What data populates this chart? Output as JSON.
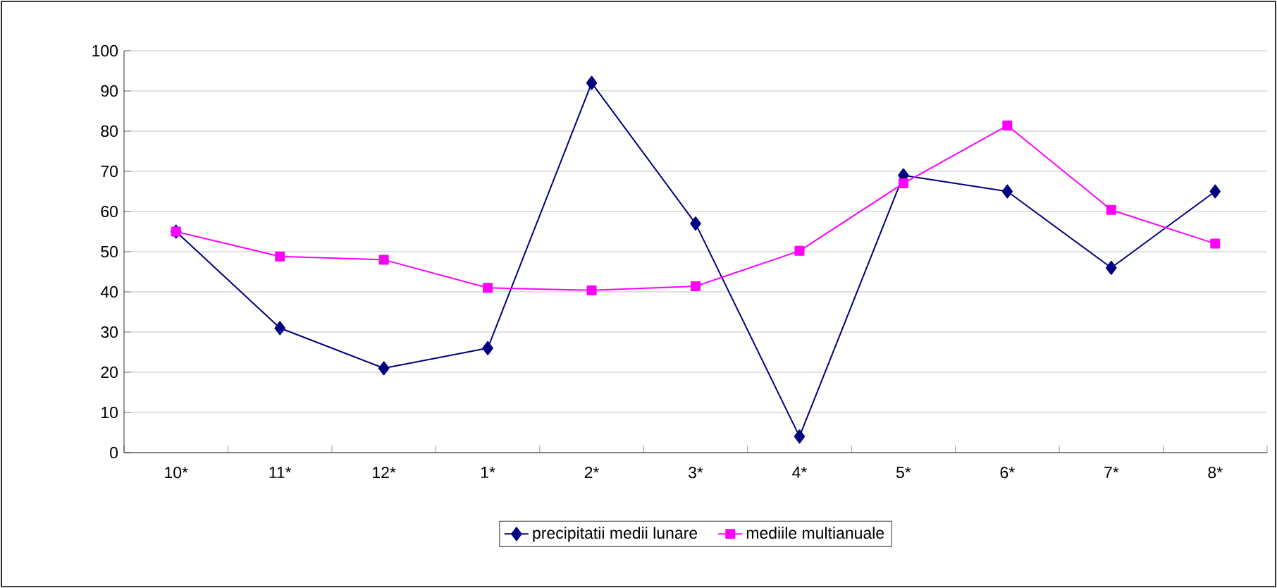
{
  "chart_data": {
    "type": "line",
    "categories": [
      "10*",
      "11*",
      "12*",
      "1*",
      "2*",
      "3*",
      "4*",
      "5*",
      "6*",
      "7*",
      "8*"
    ],
    "series": [
      {
        "name": "precipitatii medii lunare",
        "color": "#000080",
        "marker": "diamond",
        "values": [
          55,
          31,
          21,
          26,
          92,
          57,
          4,
          69,
          65,
          46,
          65
        ]
      },
      {
        "name": "mediile multianuale",
        "color": "#ff00ff",
        "marker": "square",
        "values": [
          55,
          48.8,
          48,
          41,
          40.4,
          41.4,
          50.2,
          67,
          81.4,
          60.4,
          52
        ]
      }
    ],
    "ylim": [
      0,
      100
    ],
    "yticks": [
      0,
      10,
      20,
      30,
      40,
      50,
      60,
      70,
      80,
      90,
      100
    ],
    "grid": "y",
    "legend": "bottom",
    "line_style": "solid"
  }
}
